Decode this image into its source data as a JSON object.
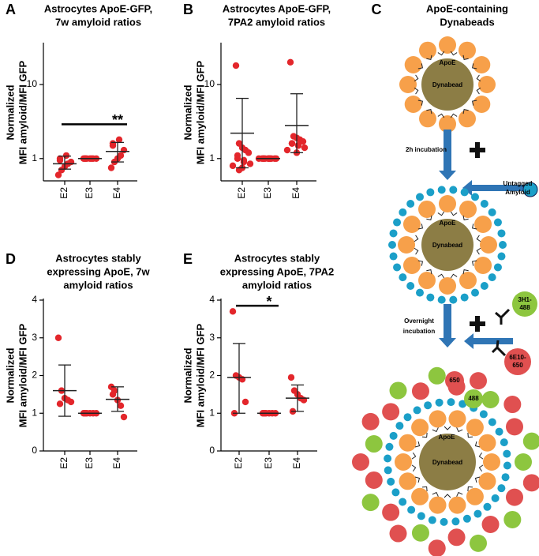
{
  "chart_data": [
    {
      "type": "dot",
      "panel": "A",
      "title": [
        "Astrocytes ApoE-GFP,",
        "7w amyloid ratios"
      ],
      "ylabel": [
        "Normalized",
        "MFI amyloid/MFI GFP"
      ],
      "categories": [
        "E2",
        "E3",
        "E4"
      ],
      "color": "#e3262b",
      "log_scale": true,
      "ylim": [
        0.5,
        35
      ],
      "yticks": [
        1,
        10
      ],
      "values": [
        [
          0.6,
          0.7,
          0.78,
          0.85,
          0.9,
          0.95,
          1.0,
          1.1
        ],
        [
          1,
          1,
          1,
          1,
          1,
          1,
          1,
          1
        ],
        [
          0.75,
          0.9,
          1.0,
          1.1,
          1.3,
          1.5,
          1.6,
          1.8
        ]
      ],
      "mean": [
        0.85,
        1,
        1.25
      ],
      "error_low": [
        0.72,
        1,
        0.9
      ],
      "error_high": [
        1.08,
        1,
        1.65
      ],
      "significance": {
        "from": 0,
        "to": 2,
        "y": 2.9,
        "label": "**"
      }
    },
    {
      "type": "dot",
      "panel": "B",
      "title": [
        "Astrocytes ApoE-GFP,",
        "7PA2 amyloid ratios"
      ],
      "ylabel": [
        "Normalized",
        "MFI amyloid/MFI GFP"
      ],
      "categories": [
        "E2",
        "E3",
        "E4"
      ],
      "color": "#e3262b",
      "log_scale": true,
      "ylim": [
        0.5,
        35
      ],
      "yticks": [
        1,
        10
      ],
      "values": [
        [
          18,
          1.6,
          1.4,
          1.3,
          1.2,
          1.1,
          1.0,
          0.95,
          0.9,
          0.85,
          0.8,
          0.75,
          0.7
        ],
        [
          1,
          1,
          1,
          1,
          1,
          1,
          1,
          1,
          1,
          1,
          1,
          1
        ],
        [
          20,
          2.0,
          1.9,
          1.8,
          1.7,
          1.6,
          1.6,
          1.5,
          1.5,
          1.4,
          1.3,
          1.2
        ]
      ],
      "mean": [
        2.2,
        1,
        2.8
      ],
      "error_low": [
        0.75,
        1,
        1.2
      ],
      "error_high": [
        6.5,
        1,
        7.5
      ]
    },
    {
      "type": "dot",
      "panel": "D",
      "title": [
        "Astrocytes stably",
        "expressing ApoE, 7w",
        "amyloid ratios"
      ],
      "ylabel": [
        "Normalized",
        "MFI amyloid/MFI GFP"
      ],
      "categories": [
        "E2",
        "E3",
        "E4"
      ],
      "color": "#e3262b",
      "log_scale": false,
      "ylim": [
        0,
        4
      ],
      "yticks": [
        0,
        1,
        2,
        3,
        4
      ],
      "values": [
        [
          3.0,
          1.6,
          1.4,
          1.35,
          1.3,
          1.25
        ],
        [
          1,
          1,
          1,
          1,
          1,
          1
        ],
        [
          1.7,
          1.6,
          1.35,
          1.2,
          0.9,
          1.5
        ]
      ],
      "mean": [
        1.6,
        1,
        1.37
      ],
      "error_low": [
        0.92,
        1,
        1.05
      ],
      "error_high": [
        2.28,
        1,
        1.7
      ]
    },
    {
      "type": "dot",
      "panel": "E",
      "title": [
        "Astrocytes stably",
        "expressing ApoE, 7PA2",
        "amyloid ratios"
      ],
      "ylabel": [
        "Normalized",
        "MFI amyloid/MFI GFP"
      ],
      "categories": [
        "E2",
        "E3",
        "E4"
      ],
      "color": "#e3262b",
      "log_scale": false,
      "ylim": [
        0,
        4
      ],
      "yticks": [
        0,
        1,
        2,
        3,
        4
      ],
      "values": [
        [
          3.7,
          2.0,
          1.95,
          1.9,
          1.3,
          1.0
        ],
        [
          1,
          1,
          1,
          1,
          1,
          1
        ],
        [
          1.95,
          1.6,
          1.5,
          1.4,
          1.35,
          1.05
        ]
      ],
      "mean": [
        1.95,
        1,
        1.4
      ],
      "error_low": [
        1.0,
        1,
        1.05
      ],
      "error_high": [
        2.85,
        1,
        1.75
      ],
      "significance": {
        "from": 0,
        "to": 1,
        "y": 3.85,
        "label": "*"
      }
    }
  ],
  "diagram": {
    "panel": "C",
    "title": [
      "ApoE-containing",
      "Dynabeads"
    ],
    "step1": {
      "apoe": "ApoE",
      "bead": "Dynabead"
    },
    "incubation_1": "2h incubation",
    "amyloid": [
      "Untagged",
      "Amyloid"
    ],
    "step2": {
      "apoe": "ApoE",
      "bead": "Dynabead"
    },
    "antibody_1": [
      "3H1-",
      "488"
    ],
    "antibody_2": [
      "6E10-",
      "650"
    ],
    "incubation_2": [
      "Overnight",
      "incubation"
    ],
    "step3": {
      "red": "650",
      "green": "488",
      "apoe": "ApoE",
      "bead": "Dynabead"
    }
  }
}
